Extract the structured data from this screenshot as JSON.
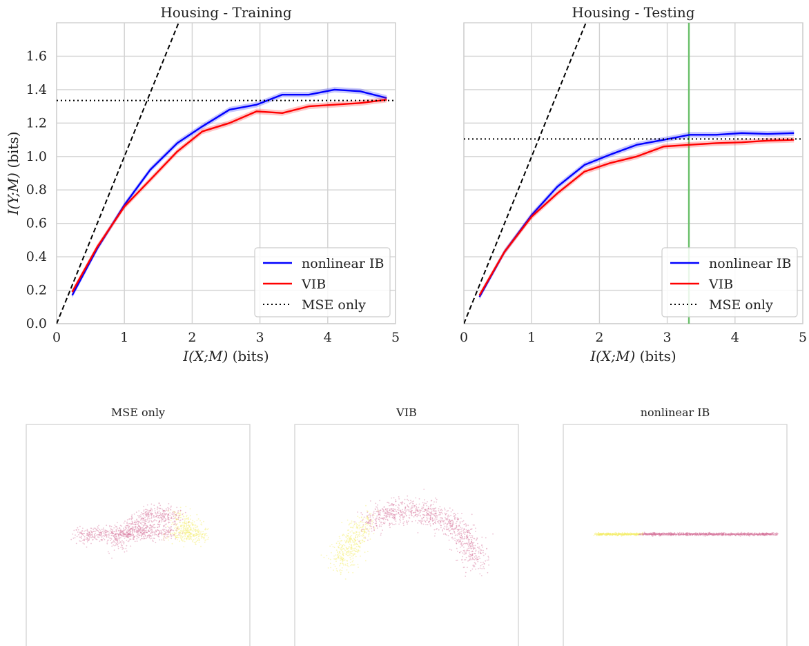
{
  "chart_data": [
    {
      "type": "line",
      "title": "Housing - Training",
      "xlabel": "I(X;M) (bits)",
      "ylabel": "I(Y;M) (bits)",
      "xlim": [
        0,
        5
      ],
      "ylim": [
        0,
        1.8
      ],
      "xticks": [
        "0",
        "1",
        "2",
        "3",
        "4",
        "5"
      ],
      "yticks": [
        "0.0",
        "0.2",
        "0.4",
        "0.6",
        "0.8",
        "1.0",
        "1.2",
        "1.4",
        "1.6"
      ],
      "grid": true,
      "legend_position": "lower-right",
      "series": [
        {
          "name": "nonlinear IB",
          "color": "#0000ff",
          "style": "solid",
          "band": true,
          "x": [
            0.23,
            0.6,
            1.0,
            1.38,
            1.78,
            2.15,
            2.55,
            2.95,
            3.33,
            3.72,
            4.1,
            4.48,
            4.87
          ],
          "y": [
            0.17,
            0.45,
            0.71,
            0.92,
            1.08,
            1.18,
            1.28,
            1.31,
            1.37,
            1.37,
            1.4,
            1.39,
            1.35
          ]
        },
        {
          "name": "VIB",
          "color": "#ff0000",
          "style": "solid",
          "band": true,
          "x": [
            0.23,
            0.6,
            1.0,
            1.38,
            1.78,
            2.15,
            2.55,
            2.95,
            3.33,
            3.72,
            4.1,
            4.48,
            4.87
          ],
          "y": [
            0.19,
            0.46,
            0.7,
            0.86,
            1.03,
            1.15,
            1.2,
            1.27,
            1.26,
            1.3,
            1.31,
            1.32,
            1.34
          ]
        },
        {
          "name": "MSE only",
          "color": "#000000",
          "style": "dotted",
          "type": "hline",
          "y": 1.335
        },
        {
          "name": "",
          "color": "#000000",
          "style": "dashed",
          "type": "line",
          "x": [
            0,
            1.8
          ],
          "y": [
            0,
            1.8
          ]
        }
      ]
    },
    {
      "type": "line",
      "title": "Housing - Testing",
      "xlabel": "I(X;M) (bits)",
      "ylabel": "",
      "xlim": [
        0,
        5
      ],
      "ylim": [
        0,
        1.8
      ],
      "xticks": [
        "0",
        "1",
        "2",
        "3",
        "4",
        "5"
      ],
      "yticks": [],
      "grid": true,
      "legend_position": "lower-right",
      "vline": {
        "x": 3.32,
        "color": "#6abf6a"
      },
      "series": [
        {
          "name": "nonlinear IB",
          "color": "#0000ff",
          "style": "solid",
          "band": true,
          "x": [
            0.23,
            0.6,
            1.0,
            1.38,
            1.78,
            2.15,
            2.55,
            2.95,
            3.33,
            3.72,
            4.1,
            4.48,
            4.87
          ],
          "y": [
            0.16,
            0.43,
            0.65,
            0.82,
            0.95,
            1.01,
            1.07,
            1.1,
            1.13,
            1.13,
            1.14,
            1.135,
            1.14
          ]
        },
        {
          "name": "VIB",
          "color": "#ff0000",
          "style": "solid",
          "band": true,
          "x": [
            0.23,
            0.6,
            1.0,
            1.38,
            1.78,
            2.15,
            2.55,
            2.95,
            3.33,
            3.72,
            4.1,
            4.48,
            4.87
          ],
          "y": [
            0.17,
            0.43,
            0.64,
            0.78,
            0.91,
            0.96,
            1.0,
            1.06,
            1.07,
            1.08,
            1.085,
            1.095,
            1.1
          ]
        },
        {
          "name": "MSE only",
          "color": "#000000",
          "style": "dotted",
          "type": "hline",
          "y": 1.105
        },
        {
          "name": "",
          "color": "#000000",
          "style": "dashed",
          "type": "line",
          "x": [
            0,
            1.8
          ],
          "y": [
            0,
            1.8
          ]
        }
      ]
    },
    {
      "type": "scatter",
      "title": "MSE only",
      "shape": "two-lobe crescent",
      "axes_visible": false,
      "colors": [
        "#d8789e",
        "#f4ee6a"
      ]
    },
    {
      "type": "scatter",
      "title": "VIB",
      "shape": "inverted U arc",
      "axes_visible": false,
      "colors": [
        "#d8789e",
        "#f4ee6a"
      ]
    },
    {
      "type": "scatter",
      "title": "nonlinear IB",
      "shape": "horizontal line",
      "axes_visible": false,
      "colors": [
        "#d8789e",
        "#f4ee6a"
      ]
    }
  ]
}
